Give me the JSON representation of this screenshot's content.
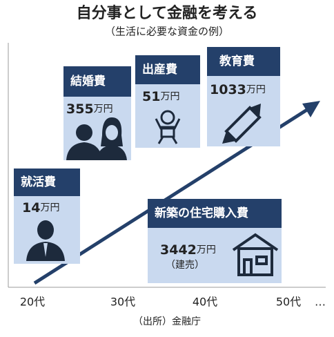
{
  "header": {
    "title": "自分事として金融を考える",
    "subtitle": "（生活に必要な資金の例）"
  },
  "cards": [
    {
      "label": "就活費",
      "amount": "14",
      "unit": "万円"
    },
    {
      "label": "結婚費",
      "amount": "355",
      "unit": "万円"
    },
    {
      "label": "出産費",
      "amount": "51",
      "unit": "万円"
    },
    {
      "label": "教育費",
      "amount": "1033",
      "unit": "万円"
    },
    {
      "label": "新築の住宅購入費",
      "amount": "3442",
      "unit": "万円",
      "note": "（建売）"
    }
  ],
  "axis": {
    "labels": [
      "20代",
      "30代",
      "40代",
      "50代",
      "…"
    ]
  },
  "source": "（出所）金融庁"
}
